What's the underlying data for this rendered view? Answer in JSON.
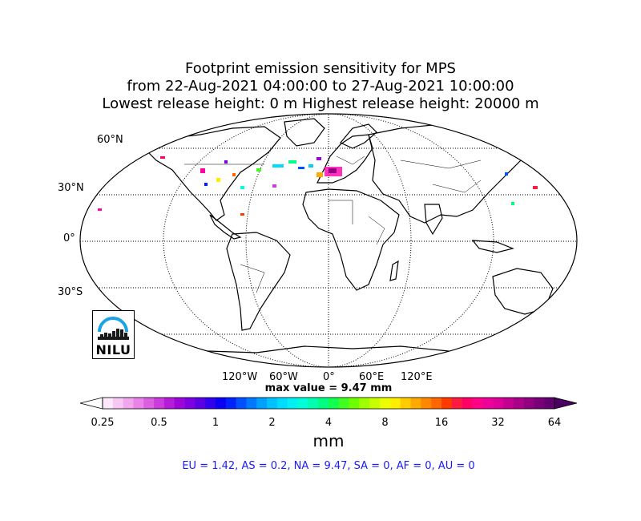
{
  "title": {
    "line1": "Footprint emission sensitivity for MPS",
    "line2": "from 22-Aug-2021 04:00:00 to 27-Aug-2021 10:00:00",
    "line3": "Lowest release height: 0 m      Highest release height: 20000 m"
  },
  "map": {
    "projection": "Robinson",
    "lat_labels": [
      "60°N",
      "30°N",
      "0°",
      "30°S"
    ],
    "lon_labels": [
      "120°W",
      "60°W",
      "0°",
      "60°E",
      "120°E"
    ],
    "max_value": "max value = 9.47 mm"
  },
  "logo": {
    "text": "NILU",
    "accent_color": "#1aa3e8"
  },
  "colorbar": {
    "ticks": [
      "0.25",
      "0.5",
      "1",
      "2",
      "4",
      "8",
      "16",
      "32",
      "64"
    ],
    "unit": "mm",
    "colors": [
      "#fde9fb",
      "#f7c8f4",
      "#f1a6ee",
      "#e883e8",
      "#dc5fe2",
      "#cc3bdc",
      "#b51bd8",
      "#9c06db",
      "#7c00e0",
      "#5a00e5",
      "#3300ee",
      "#0b00f6",
      "#0022ff",
      "#0050ff",
      "#0078ff",
      "#00a0ff",
      "#00c2ff",
      "#00dcff",
      "#00f0f4",
      "#00ffd8",
      "#00ffb0",
      "#00ff80",
      "#10ff50",
      "#40ff20",
      "#70ff00",
      "#a0ff00",
      "#c8ff00",
      "#ecff00",
      "#ffee00",
      "#ffcc00",
      "#ffaa00",
      "#ff8800",
      "#ff6600",
      "#ff3a00",
      "#ff1a40",
      "#ff0066",
      "#ff0088",
      "#ee0099",
      "#dd0099",
      "#c40090",
      "#ab0088",
      "#920080",
      "#7a0078",
      "#620070"
    ]
  },
  "regions": "EU = 1.42,  AS = 0.2,  NA = 9.47,  SA = 0,  AF = 0,  AU = 0"
}
